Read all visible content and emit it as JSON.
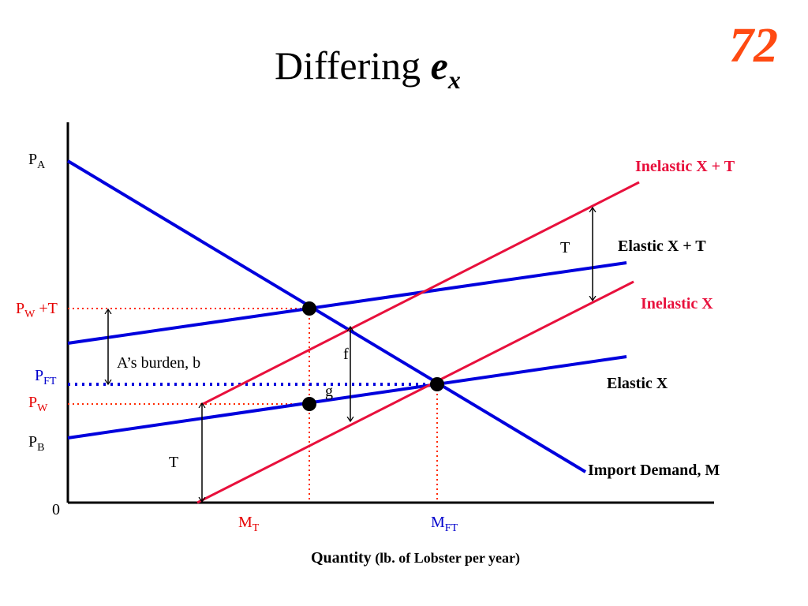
{
  "slide": {
    "title_main": "Differing ",
    "title_var": "e",
    "title_sub": "x",
    "number": "72"
  },
  "labels": {
    "pa": {
      "main": "P",
      "sub": "A"
    },
    "pw_t": {
      "main": "P",
      "sub": "W",
      "suffix": " +T"
    },
    "pft": {
      "main": "P",
      "sub": "FT"
    },
    "pw": {
      "main": "P",
      "sub": "W"
    },
    "pb": {
      "main": "P",
      "sub": "B"
    },
    "origin": "0",
    "mt": {
      "main": "M",
      "sub": "T"
    },
    "mft": {
      "main": "M",
      "sub": "FT"
    },
    "burden": "A’s burden, b",
    "f": "f",
    "g": "g",
    "t_upper": "T",
    "t_lower": "T"
  },
  "curves": {
    "inelastic_xt": "Inelastic X + T",
    "elastic_xt": "Elastic X + T",
    "inelastic_x": "Inelastic X",
    "elastic_x": "Elastic X",
    "import_demand": "Import Demand, M"
  },
  "axis": {
    "xlabel_main": "Quantity",
    "xlabel_note": " (lb. of Lobster per year)"
  },
  "colors": {
    "blue": "#0000dd",
    "red": "#e8103c",
    "dotted_red": "#ff2a00",
    "black": "#000000"
  }
}
